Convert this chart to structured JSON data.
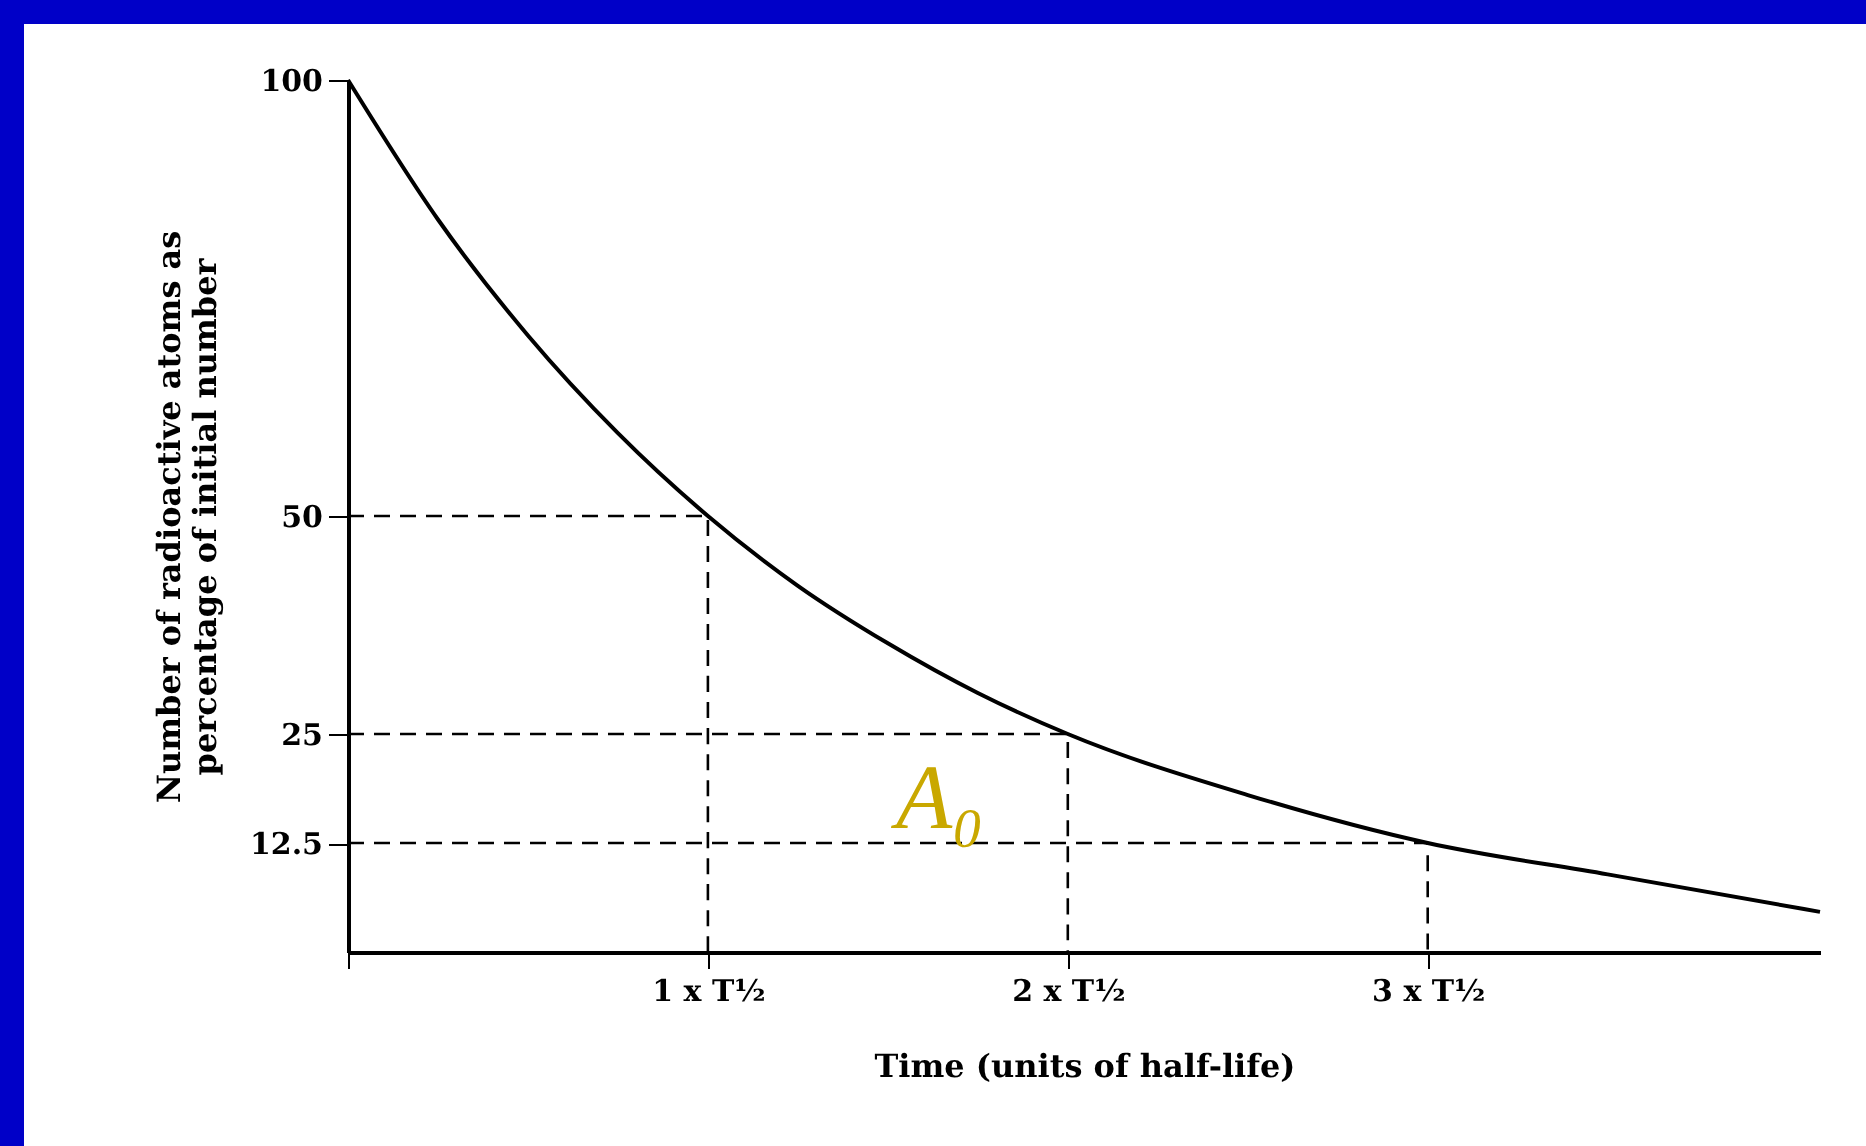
{
  "chart_data": {
    "type": "line",
    "xlabel": "Time (units of half-life)",
    "ylabel": "Number of radioactive atoms as percentage of initial number",
    "xlim": [
      0,
      4.09
    ],
    "ylim": [
      0,
      100
    ],
    "xticks": [
      {
        "value": 0,
        "label": null
      },
      {
        "value": 1,
        "label": "1 x T½"
      },
      {
        "value": 2,
        "label": "2 x T½"
      },
      {
        "value": 3,
        "label": "3 x T½"
      }
    ],
    "yticks": [
      12.5,
      25,
      50,
      100
    ],
    "series": [
      {
        "color": "#000000",
        "line_style": "solid",
        "x": [
          0,
          0.25,
          0.5,
          0.75,
          1,
          1.25,
          1.5,
          1.75,
          2,
          2.5,
          3,
          3.5,
          4.09
        ],
        "values": [
          100,
          84,
          70.7,
          59.5,
          50,
          42,
          35.4,
          29.7,
          25,
          18,
          12.5,
          8.9,
          4.6
        ]
      },
      {
        "color": "#000000",
        "line_style": "dashed",
        "x": [
          0,
          1,
          1
        ],
        "values": [
          50,
          50,
          0
        ]
      },
      {
        "color": "#000000",
        "line_style": "dashed",
        "x": [
          0,
          2,
          2
        ],
        "values": [
          25,
          25,
          0
        ]
      },
      {
        "color": "#000000",
        "line_style": "dashed",
        "x": [
          0,
          3,
          3
        ],
        "values": [
          12.5,
          12.5,
          0
        ]
      }
    ],
    "annotations": [
      "A₀"
    ],
    "grid": false,
    "marker": "none"
  }
}
